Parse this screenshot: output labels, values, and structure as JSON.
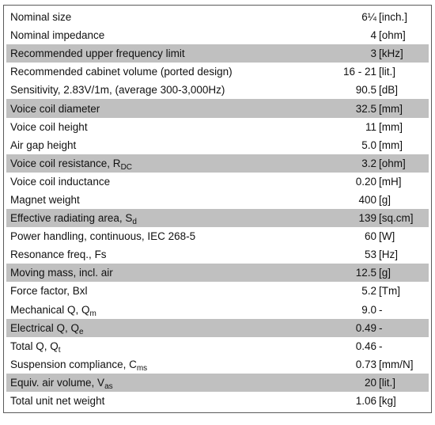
{
  "rows": [
    {
      "label": "Nominal size",
      "sub": "",
      "value": "6¼",
      "unit": "[inch.]",
      "shaded": false
    },
    {
      "label": "Nominal impedance",
      "sub": "",
      "value": "4",
      "unit": "[ohm]",
      "shaded": false
    },
    {
      "label": "Recommended upper frequency limit",
      "sub": "",
      "value": "3",
      "unit": "[kHz]",
      "shaded": true
    },
    {
      "label": "Recommended cabinet volume (ported design)",
      "sub": "",
      "value": "16 - 21",
      "unit": "[lit.]",
      "shaded": false
    },
    {
      "label": "Sensitivity, 2.83V/1m, (average 300-3,000Hz)",
      "sub": "",
      "value": "90.5",
      "unit": "[dB]",
      "shaded": false
    },
    {
      "label": "Voice coil diameter",
      "sub": "",
      "value": "32.5",
      "unit": "[mm]",
      "shaded": true
    },
    {
      "label": "Voice coil height",
      "sub": "",
      "value": "11",
      "unit": "[mm]",
      "shaded": false
    },
    {
      "label": "Air gap height",
      "sub": "",
      "value": "5.0",
      "unit": "[mm]",
      "shaded": false
    },
    {
      "label": "Voice coil resistance, R",
      "sub": "DC",
      "value": "3.2",
      "unit": "[ohm]",
      "shaded": true
    },
    {
      "label": "Voice coil inductance",
      "sub": "",
      "value": "0.20",
      "unit": "[mH]",
      "shaded": false
    },
    {
      "label": "Magnet weight",
      "sub": "",
      "value": "400",
      "unit": "[g]",
      "shaded": false
    },
    {
      "label": "Effective radiating area, S",
      "sub": "d",
      "value": "139",
      "unit": "[sq.cm]",
      "shaded": true
    },
    {
      "label": "Power handling, continuous, IEC 268-5",
      "sub": "",
      "value": "60",
      "unit": "[W]",
      "shaded": false
    },
    {
      "label": "Resonance freq., Fs",
      "sub": "",
      "value": "53",
      "unit": "[Hz]",
      "shaded": false
    },
    {
      "label": "Moving mass, incl. air",
      "sub": "",
      "value": "12.5",
      "unit": "[g]",
      "shaded": true
    },
    {
      "label": "Force factor, Bxl",
      "sub": "",
      "value": "5.2",
      "unit": "[Tm]",
      "shaded": false
    },
    {
      "label": "Mechanical Q, Q",
      "sub": "m",
      "value": "9.0",
      "unit": "-",
      "shaded": false
    },
    {
      "label": "Electrical Q, Q",
      "sub": "e",
      "value": "0.49",
      "unit": "-",
      "shaded": true
    },
    {
      "label": "Total Q, Q",
      "sub": "t",
      "value": "0.46",
      "unit": "-",
      "shaded": false
    },
    {
      "label": "Suspension compliance, C",
      "sub": "ms",
      "value": "0.73",
      "unit": "[mm/N]",
      "shaded": false
    },
    {
      "label": "Equiv. air volume, V",
      "sub": "as",
      "value": "20",
      "unit": "[lit.]",
      "shaded": true
    },
    {
      "label": "Total unit net weight",
      "sub": "",
      "value": "1.06",
      "unit": "[kg]",
      "shaded": false
    }
  ]
}
